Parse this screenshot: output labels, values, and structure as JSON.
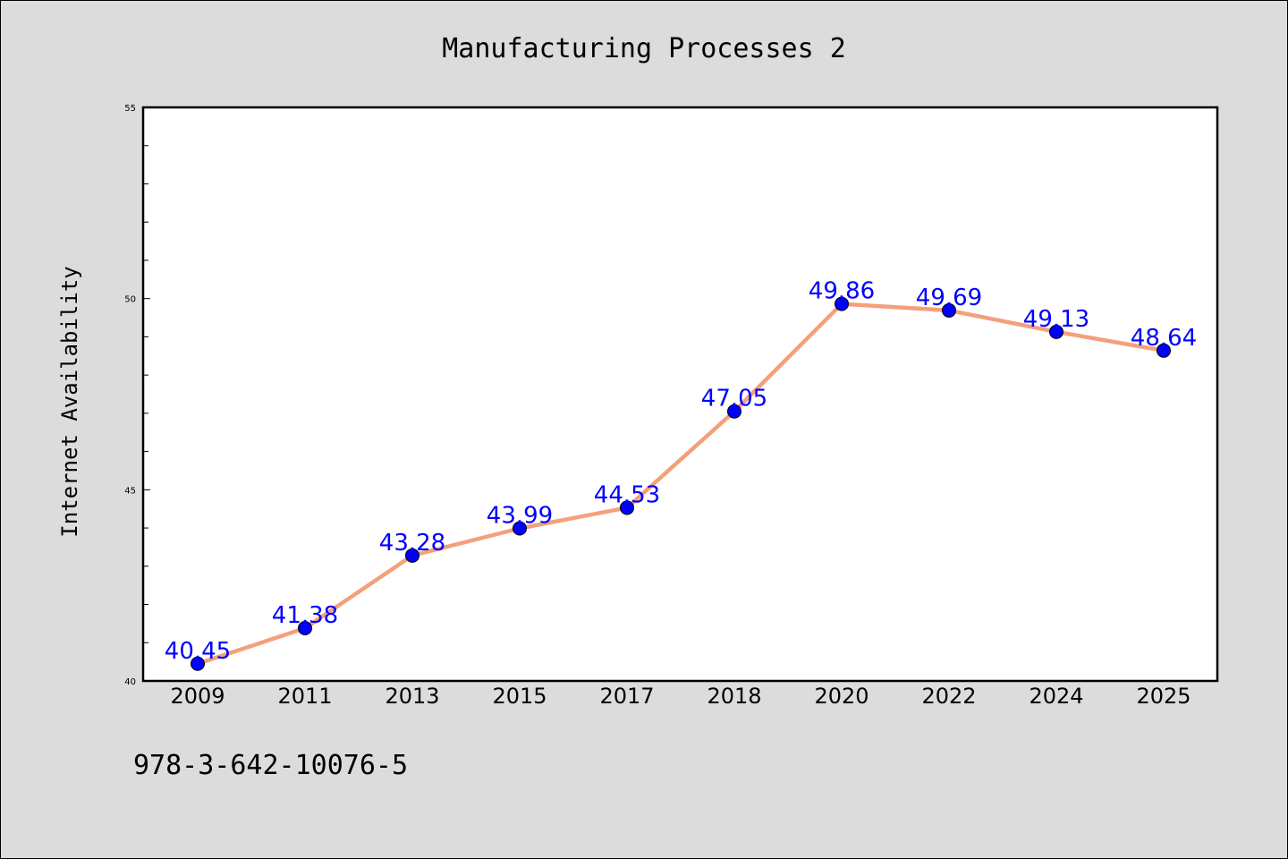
{
  "chart_data": {
    "type": "line",
    "title": "Manufacturing Processes 2",
    "ylabel": "Internet Availability",
    "xlabel": "",
    "categories": [
      "2009",
      "2011",
      "2013",
      "2015",
      "2017",
      "2018",
      "2020",
      "2022",
      "2024",
      "2025"
    ],
    "series": [
      {
        "values": [
          40.45,
          41.38,
          43.28,
          43.99,
          44.53,
          47.05,
          49.86,
          49.69,
          49.13,
          48.64
        ]
      }
    ],
    "data_labels": [
      "40.45",
      "41.38",
      "43.28",
      "43.99",
      "44.53",
      "47.05",
      "49.86",
      "49.69",
      "49.13",
      "48.64"
    ],
    "ylim": [
      40,
      55
    ],
    "yticks": [
      "40",
      "45",
      "50",
      "55"
    ],
    "grid": false,
    "legend": "none",
    "colors": {
      "line": "#f4a07a",
      "marker": "#0000ff",
      "label": "#0000ff",
      "background": "#dcdcdc",
      "plot_background": "#ffffff"
    }
  },
  "footer": {
    "isbn": "978-3-642-10076-5"
  }
}
